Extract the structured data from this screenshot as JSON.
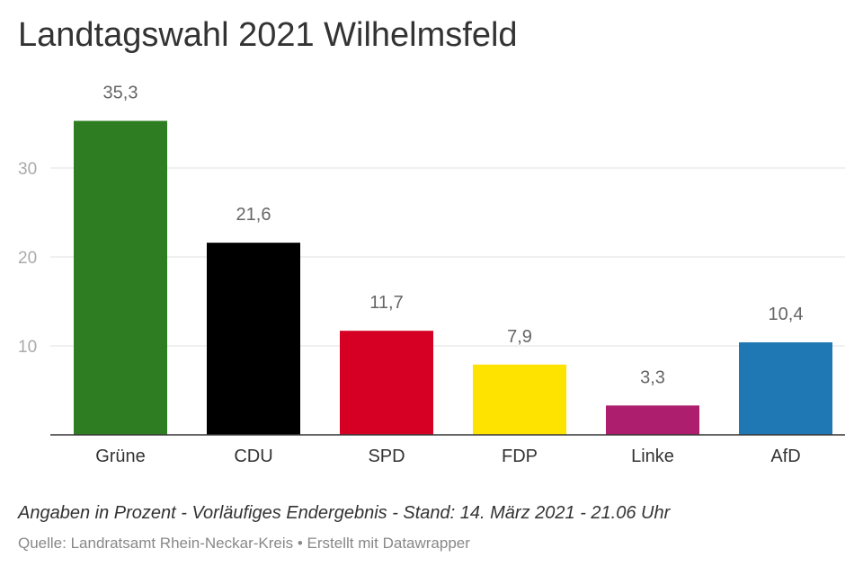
{
  "chart_data": {
    "type": "bar",
    "title": "Landtagswahl 2021 Wilhelmsfeld",
    "categories": [
      "Grüne",
      "CDU",
      "SPD",
      "FDP",
      "Linke",
      "AfD"
    ],
    "values": [
      35.3,
      21.6,
      11.7,
      7.9,
      3.3,
      10.4
    ],
    "value_labels": [
      "35,3",
      "21,6",
      "11,7",
      "7,9",
      "3,3",
      "10,4"
    ],
    "colors": [
      "#2e7d23",
      "#000000",
      "#d50024",
      "#ffe300",
      "#ad1f6e",
      "#1f77b4"
    ],
    "yticks": [
      10,
      20,
      30
    ],
    "ylim": [
      0,
      40
    ],
    "grid": true,
    "xlabel": "",
    "ylabel": ""
  },
  "notes": "Angaben in Prozent - Vorläufiges Endergebnis - Stand: 14. März 2021 - 21.06 Uhr",
  "source": "Quelle: Landratsamt Rhein-Neckar-Kreis • Erstellt mit Datawrapper"
}
